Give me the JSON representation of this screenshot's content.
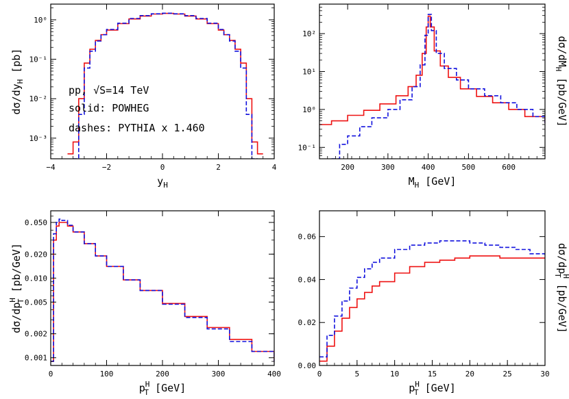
{
  "colors": {
    "powheg": "#ee1111",
    "pythia": "#1111dd",
    "text_black": "#000000"
  },
  "chart_data": [
    {
      "id": "p1",
      "type": "line",
      "xscale": "linear",
      "yscale": "log",
      "xlim": [
        -4,
        4
      ],
      "ylim": [
        0.0003,
        2.5
      ],
      "xlabel": "y",
      "xlabel_sub": "H",
      "ylabel_pre": "dσ/dy",
      "ylabel_sub": "H",
      "ylabel_post": " [pb]",
      "ylabel_side": "left",
      "xticks": [
        -4,
        -2,
        0,
        2,
        4
      ],
      "xtick_labels": [
        "−4",
        "−2",
        "0",
        "2",
        "4"
      ],
      "yticks": [
        0.001,
        0.01,
        0.1,
        1
      ],
      "ytick_labels": [
        "10⁻³",
        "10⁻²",
        "10⁻¹",
        "10⁰"
      ],
      "annotations": [
        {
          "text": "pp, √S=14 TeV",
          "color": "text_black"
        },
        {
          "text": "solid: POWHEG",
          "color": "powheg"
        },
        {
          "text": "dashes: PYTHIA x 1.460",
          "color": "pythia"
        }
      ],
      "series": [
        {
          "name": "POWHEG",
          "style": "solid",
          "color": "powheg",
          "x": [
            -3.4,
            -3.2,
            -3.0,
            -2.8,
            -2.6,
            -2.4,
            -2.2,
            -2.0,
            -1.6,
            -1.2,
            -0.8,
            -0.4,
            0,
            0.4,
            0.8,
            1.2,
            1.6,
            2.0,
            2.2,
            2.4,
            2.6,
            2.8,
            3.0,
            3.2,
            3.4
          ],
          "y": [
            0.0004,
            0.0008,
            0.01,
            0.08,
            0.18,
            0.3,
            0.42,
            0.55,
            0.8,
            1.05,
            1.25,
            1.4,
            1.45,
            1.4,
            1.25,
            1.05,
            0.8,
            0.55,
            0.42,
            0.3,
            0.18,
            0.08,
            0.01,
            0.0008,
            0.0004
          ]
        },
        {
          "name": "PYTHIA",
          "style": "dashed",
          "color": "pythia",
          "x": [
            -3.2,
            -3.0,
            -2.8,
            -2.6,
            -2.4,
            -2.2,
            -2.0,
            -1.6,
            -1.2,
            -0.8,
            -0.4,
            0,
            0.4,
            0.8,
            1.2,
            1.6,
            2.0,
            2.2,
            2.4,
            2.6,
            2.8,
            3.0,
            3.2
          ],
          "y": [
            0.0003,
            0.004,
            0.06,
            0.16,
            0.29,
            0.42,
            0.57,
            0.82,
            1.08,
            1.28,
            1.42,
            1.47,
            1.42,
            1.28,
            1.08,
            0.82,
            0.57,
            0.42,
            0.29,
            0.16,
            0.06,
            0.004,
            0.0003
          ]
        }
      ]
    },
    {
      "id": "p2",
      "type": "line",
      "xscale": "linear",
      "yscale": "log",
      "xlim": [
        130,
        690
      ],
      "ylim": [
        0.05,
        600
      ],
      "xlabel": "M",
      "xlabel_sub": "H",
      "xlabel_post": " [GeV]",
      "ylabel_pre": "dσ/dM",
      "ylabel_sub": "H",
      "ylabel_post": " [pb/GeV]",
      "ylabel_side": "right",
      "xticks": [
        200,
        300,
        400,
        500,
        600
      ],
      "xtick_labels": [
        "200",
        "300",
        "400",
        "500",
        "600"
      ],
      "yticks": [
        0.1,
        1,
        10,
        100
      ],
      "ytick_labels": [
        "10⁻¹",
        "10⁰",
        "10¹",
        "10²"
      ],
      "series": [
        {
          "name": "POWHEG",
          "style": "solid",
          "color": "powheg",
          "x": [
            130,
            160,
            200,
            240,
            280,
            320,
            350,
            370,
            385,
            395,
            400,
            405,
            415,
            430,
            450,
            480,
            520,
            560,
            600,
            640,
            690
          ],
          "y": [
            0.4,
            0.5,
            0.7,
            0.95,
            1.4,
            2.3,
            4,
            8,
            30,
            150,
            290,
            150,
            35,
            14,
            7,
            3.5,
            2.2,
            1.5,
            1.0,
            0.65,
            0.45
          ]
        },
        {
          "name": "PYTHIA",
          "style": "dashed",
          "color": "pythia",
          "x": [
            160,
            180,
            200,
            230,
            260,
            300,
            330,
            360,
            380,
            392,
            400,
            408,
            420,
            440,
            470,
            500,
            540,
            580,
            620,
            660,
            690
          ],
          "y": [
            0.05,
            0.12,
            0.2,
            0.35,
            0.6,
            1.0,
            1.8,
            4,
            15,
            90,
            320,
            120,
            30,
            12,
            6,
            3.5,
            2.3,
            1.5,
            1.0,
            0.65,
            0.45
          ]
        }
      ]
    },
    {
      "id": "p3",
      "type": "line",
      "xscale": "linear",
      "yscale": "log",
      "xlim": [
        0,
        400
      ],
      "ylim": [
        0.0008,
        0.07
      ],
      "xlabel": "p",
      "xlabel_sub": "T",
      "xlabel_sup": "H",
      "xlabel_post": " [GeV]",
      "ylabel_pre": "dσ/dp",
      "ylabel_sub": "T",
      "ylabel_sup": "H",
      "ylabel_post": " [pb/GeV]",
      "ylabel_side": "left",
      "xticks": [
        0,
        100,
        200,
        300,
        400
      ],
      "xtick_labels": [
        "0",
        "100",
        "200",
        "300",
        "400"
      ],
      "yticks": [
        0.001,
        0.002,
        0.005,
        0.01,
        0.02,
        0.05
      ],
      "ytick_labels": [
        "0.001",
        "0.002",
        "0.005",
        "0.010",
        "0.020",
        "0.050"
      ],
      "series": [
        {
          "name": "POWHEG",
          "style": "solid",
          "color": "powheg",
          "x": [
            0,
            5,
            10,
            15,
            20,
            30,
            40,
            60,
            80,
            100,
            130,
            160,
            200,
            240,
            280,
            320,
            360,
            400
          ],
          "y": [
            0.0009,
            0.03,
            0.045,
            0.05,
            0.05,
            0.045,
            0.038,
            0.027,
            0.019,
            0.014,
            0.0095,
            0.007,
            0.0048,
            0.0033,
            0.0024,
            0.0017,
            0.0012,
            0.0009
          ]
        },
        {
          "name": "PYTHIA",
          "style": "dashed",
          "color": "pythia",
          "x": [
            0,
            5,
            10,
            15,
            20,
            30,
            40,
            60,
            80,
            100,
            130,
            160,
            200,
            240,
            280,
            320,
            360,
            400
          ],
          "y": [
            0.0009,
            0.036,
            0.05,
            0.055,
            0.053,
            0.046,
            0.038,
            0.027,
            0.019,
            0.014,
            0.0095,
            0.007,
            0.0047,
            0.0032,
            0.0023,
            0.0016,
            0.0012,
            0.0009
          ]
        }
      ]
    },
    {
      "id": "p4",
      "type": "line",
      "xscale": "linear",
      "yscale": "linear",
      "xlim": [
        0,
        30
      ],
      "ylim": [
        0,
        0.072
      ],
      "xlabel": "p",
      "xlabel_sub": "T",
      "xlabel_sup": "H",
      "xlabel_post": " [GeV]",
      "ylabel_pre": "dσ/dp",
      "ylabel_sub": "T",
      "ylabel_sup": "H",
      "ylabel_post": " [pb/GeV]",
      "ylabel_side": "right",
      "xticks": [
        0,
        5,
        10,
        15,
        20,
        25,
        30
      ],
      "xtick_labels": [
        "0",
        "5",
        "10",
        "15",
        "20",
        "25",
        "30"
      ],
      "yticks": [
        0,
        0.02,
        0.04,
        0.06
      ],
      "ytick_labels": [
        "0.00",
        "0.02",
        "0.04",
        "0.06"
      ],
      "series": [
        {
          "name": "POWHEG",
          "style": "solid",
          "color": "powheg",
          "x": [
            0,
            1,
            2,
            3,
            4,
            5,
            6,
            7,
            8,
            10,
            12,
            14,
            16,
            18,
            20,
            22,
            24,
            26,
            28,
            30
          ],
          "y": [
            0.002,
            0.009,
            0.016,
            0.022,
            0.027,
            0.031,
            0.034,
            0.037,
            0.039,
            0.043,
            0.046,
            0.048,
            0.049,
            0.05,
            0.051,
            0.051,
            0.05,
            0.05,
            0.05,
            0.05
          ]
        },
        {
          "name": "PYTHIA",
          "style": "dashed",
          "color": "pythia",
          "x": [
            0,
            1,
            2,
            3,
            4,
            5,
            6,
            7,
            8,
            10,
            12,
            14,
            16,
            18,
            20,
            22,
            24,
            26,
            28,
            30
          ],
          "y": [
            0.004,
            0.014,
            0.023,
            0.03,
            0.036,
            0.041,
            0.045,
            0.048,
            0.05,
            0.054,
            0.056,
            0.057,
            0.058,
            0.058,
            0.057,
            0.056,
            0.055,
            0.054,
            0.052,
            0.051
          ]
        }
      ]
    }
  ]
}
